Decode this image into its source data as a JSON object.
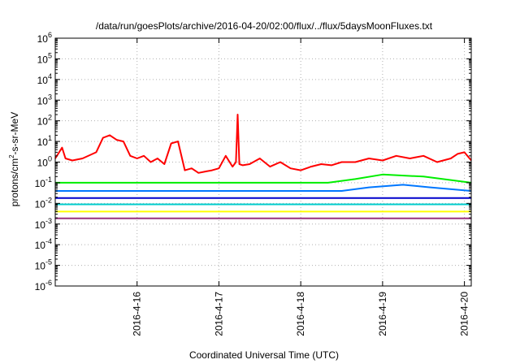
{
  "chart_data": {
    "type": "line",
    "title": "/data/run/goesPlots/archive/2016-04-20/02:00/flux/../flux/5daysMoonFluxes.txt",
    "xlabel": "Coordinated Universal Time (UTC)",
    "ylabel_parts": {
      "a": "protons/cm",
      "b": "2",
      "c": "-s-sr-MeV"
    },
    "yscale": "log",
    "grid": true,
    "legend": "none",
    "xlim": [
      "2016-04-15T00:00",
      "2016-04-20T02:00"
    ],
    "ylim": [
      1e-06,
      1000000.0
    ],
    "x_ticks": [
      {
        "date": "2016-04-16T00:00",
        "label": "2016-4-16"
      },
      {
        "date": "2016-04-17T00:00",
        "label": "2016-4-17"
      },
      {
        "date": "2016-04-18T00:00",
        "label": "2016-4-18"
      },
      {
        "date": "2016-04-19T00:00",
        "label": "2016-4-19"
      },
      {
        "date": "2016-04-20T00:00",
        "label": "2016-4-20"
      }
    ],
    "y_ticks": [
      {
        "value": 1e-06,
        "base": "10",
        "exp": "-6"
      },
      {
        "value": 1e-05,
        "base": "10",
        "exp": "-5"
      },
      {
        "value": 0.0001,
        "base": "10",
        "exp": "-4"
      },
      {
        "value": 0.001,
        "base": "10",
        "exp": "-3"
      },
      {
        "value": 0.01,
        "base": "10",
        "exp": "-2"
      },
      {
        "value": 0.1,
        "base": "10",
        "exp": "-1"
      },
      {
        "value": 1,
        "base": "10",
        "exp": "0"
      },
      {
        "value": 10,
        "base": "10",
        "exp": "1"
      },
      {
        "value": 100,
        "base": "10",
        "exp": "2"
      },
      {
        "value": 1000,
        "base": "10",
        "exp": "3"
      },
      {
        "value": 10000,
        "base": "10",
        "exp": "4"
      },
      {
        "value": 100000,
        "base": "10",
        "exp": "5"
      },
      {
        "value": 1000000,
        "base": "10",
        "exp": "6"
      }
    ],
    "series": [
      {
        "color": "#ff0000",
        "x": [
          "2016-04-15T00:00",
          "2016-04-15T02:00",
          "2016-04-15T03:00",
          "2016-04-15T05:00",
          "2016-04-15T08:00",
          "2016-04-15T12:00",
          "2016-04-15T14:00",
          "2016-04-15T16:00",
          "2016-04-15T18:00",
          "2016-04-15T20:00",
          "2016-04-15T22:00",
          "2016-04-16T00:00",
          "2016-04-16T02:00",
          "2016-04-16T04:00",
          "2016-04-16T06:00",
          "2016-04-16T08:00",
          "2016-04-16T10:00",
          "2016-04-16T12:00",
          "2016-04-16T14:00",
          "2016-04-16T16:00",
          "2016-04-16T18:00",
          "2016-04-16T20:00",
          "2016-04-16T22:00",
          "2016-04-17T00:00",
          "2016-04-17T02:00",
          "2016-04-17T04:00",
          "2016-04-17T05:00",
          "2016-04-17T05:30",
          "2016-04-17T06:00",
          "2016-04-17T07:00",
          "2016-04-17T09:00",
          "2016-04-17T12:00",
          "2016-04-17T15:00",
          "2016-04-17T18:00",
          "2016-04-17T21:00",
          "2016-04-18T00:00",
          "2016-04-18T03:00",
          "2016-04-18T06:00",
          "2016-04-18T09:00",
          "2016-04-18T12:00",
          "2016-04-18T16:00",
          "2016-04-18T20:00",
          "2016-04-19T00:00",
          "2016-04-19T04:00",
          "2016-04-19T08:00",
          "2016-04-19T12:00",
          "2016-04-19T16:00",
          "2016-04-19T20:00",
          "2016-04-19T22:00",
          "2016-04-20T00:00",
          "2016-04-20T02:00"
        ],
        "y": [
          1.5,
          5,
          1.5,
          1.2,
          1.5,
          3,
          15,
          20,
          12,
          10,
          2,
          1.5,
          2,
          1.0,
          1.5,
          0.8,
          8,
          10,
          0.4,
          0.5,
          0.3,
          0.35,
          0.4,
          0.5,
          2,
          0.6,
          1.0,
          200,
          0.8,
          0.7,
          0.8,
          1.5,
          0.6,
          1.0,
          0.5,
          0.4,
          0.6,
          0.8,
          0.7,
          1.0,
          1.0,
          1.5,
          1.2,
          2,
          1.5,
          2,
          1.0,
          1.5,
          2.5,
          3,
          1.2
        ]
      },
      {
        "color": "#00ee00",
        "x": [
          "2016-04-15T00:00",
          "2016-04-18T08:00",
          "2016-04-18T16:00",
          "2016-04-19T00:00",
          "2016-04-19T12:00",
          "2016-04-20T02:00"
        ],
        "y": [
          0.1,
          0.1,
          0.15,
          0.25,
          0.2,
          0.1
        ]
      },
      {
        "color": "#0077ff",
        "x": [
          "2016-04-15T00:00",
          "2016-04-18T12:00",
          "2016-04-18T20:00",
          "2016-04-19T06:00",
          "2016-04-19T14:00",
          "2016-04-20T02:00"
        ],
        "y": [
          0.04,
          0.04,
          0.06,
          0.08,
          0.06,
          0.04
        ]
      },
      {
        "color": "#0000cc",
        "x": [
          "2016-04-15T00:00",
          "2016-04-20T02:00"
        ],
        "y": [
          0.018,
          0.018
        ]
      },
      {
        "color": "#00cccc",
        "x": [
          "2016-04-15T00:00",
          "2016-04-20T02:00"
        ],
        "y": [
          0.009,
          0.009
        ]
      },
      {
        "color": "#ffff00",
        "x": [
          "2016-04-15T00:00",
          "2016-04-20T02:00"
        ],
        "y": [
          0.004,
          0.004
        ]
      },
      {
        "color": "#99337f",
        "x": [
          "2016-04-15T00:00",
          "2016-04-20T02:00"
        ],
        "y": [
          0.0019,
          0.0019
        ]
      }
    ]
  }
}
